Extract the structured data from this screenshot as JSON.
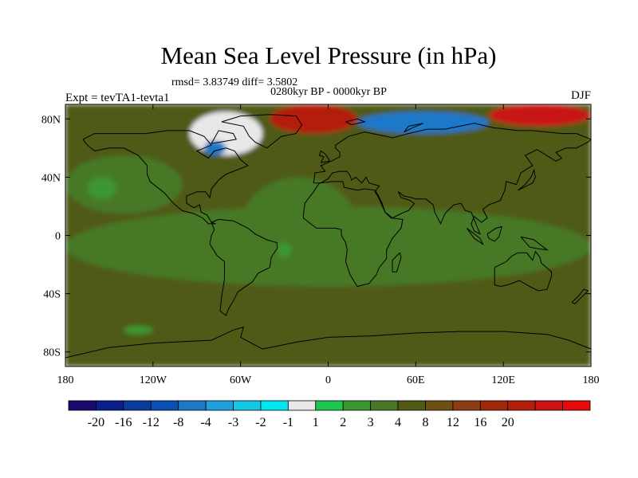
{
  "chart_data": {
    "type": "heatmap",
    "title": "Mean Sea Level Pressure (in hPa)",
    "stats": "rmsd= 3.83749 diff= 3.5802",
    "period": "0280kyr BP - 0000kyr BP",
    "experiment": "Expt = tevTA1-tevta1",
    "season": "DJF",
    "projection": "cylindrical equidistant, lon -180..180, lat -90..90",
    "x_range": [
      -180,
      180
    ],
    "y_range": [
      -90,
      90
    ],
    "x_ticks": [
      {
        "value": -180,
        "label": "180"
      },
      {
        "value": -120,
        "label": "120W"
      },
      {
        "value": -60,
        "label": "60W"
      },
      {
        "value": 0,
        "label": "0"
      },
      {
        "value": 60,
        "label": "60E"
      },
      {
        "value": 120,
        "label": "120E"
      },
      {
        "value": 180,
        "label": "180"
      }
    ],
    "y_ticks": [
      {
        "value": 80,
        "label": "80N"
      },
      {
        "value": 40,
        "label": "40N"
      },
      {
        "value": 0,
        "label": "0"
      },
      {
        "value": -40,
        "label": "40S"
      },
      {
        "value": -80,
        "label": "80S"
      }
    ],
    "colorbar": {
      "colors": [
        "#1a0a6e",
        "#0a1e8c",
        "#0a3ca0",
        "#0a50b4",
        "#1e78c8",
        "#1ea0dc",
        "#14c8e6",
        "#00e6f0",
        "#e8e8e8",
        "#1ec850",
        "#3c9632",
        "#467828",
        "#505a14",
        "#6e5014",
        "#8c3c14",
        "#a0280a",
        "#b41e0a",
        "#c81414",
        "#e60a0a"
      ],
      "labels": [
        "-20",
        "-16",
        "-12",
        "-8",
        "-4",
        "-3",
        "-2",
        "-1",
        "1",
        "2",
        "3",
        "4",
        "8",
        "12",
        "16",
        "20"
      ],
      "label_boundaries": [
        1,
        2,
        3,
        4,
        5,
        6,
        7,
        8,
        9,
        10,
        11,
        12,
        13,
        14,
        15,
        16
      ]
    },
    "regions": [
      {
        "name": "background-field",
        "value_class": "4 to 8",
        "color": "#505a14",
        "lon": [
          -180,
          180
        ],
        "lat": [
          -90,
          90
        ]
      },
      {
        "name": "pacific-north-low",
        "value_class": "3 to 4",
        "color": "#467828",
        "lon": [
          -180,
          -100
        ],
        "lat": [
          15,
          55
        ]
      },
      {
        "name": "tropical-low-band",
        "value_class": "3 to 4",
        "color": "#467828",
        "lon": [
          -180,
          180
        ],
        "lat": [
          -35,
          20
        ]
      },
      {
        "name": "atlantic-low",
        "value_class": "3 to 4",
        "color": "#467828",
        "lon": [
          -60,
          20
        ],
        "lat": [
          -30,
          40
        ]
      },
      {
        "name": "pacific-green-spot",
        "value_class": "2 to 3",
        "color": "#3c9632",
        "lon": [
          -165,
          -145
        ],
        "lat": [
          25,
          40
        ]
      },
      {
        "name": "atlantic-green-spot",
        "value_class": "2 to 3",
        "color": "#3c9632",
        "lon": [
          -35,
          -25
        ],
        "lat": [
          -15,
          -5
        ]
      },
      {
        "name": "greenland-ice",
        "value_class": "-1 to 1",
        "color": "#e8e8e8",
        "lon": [
          -95,
          -45
        ],
        "lat": [
          55,
          85
        ]
      },
      {
        "name": "hudson-ice",
        "value_class": "-4 to -1",
        "color": "#1e78c8",
        "lon": [
          -85,
          -70
        ],
        "lat": [
          55,
          65
        ]
      },
      {
        "name": "scandinavian-ice",
        "value_class": "-8 to -1",
        "color": "#1e78c8",
        "lon": [
          20,
          110
        ],
        "lat": [
          70,
          85
        ]
      },
      {
        "name": "arctic-high",
        "value_class": "12 to 20",
        "color": "#b41e0a",
        "lon": [
          -40,
          20
        ],
        "lat": [
          70,
          90
        ]
      },
      {
        "name": "siberian-high",
        "value_class": "12 to 20",
        "color": "#c81414",
        "lon": [
          110,
          180
        ],
        "lat": [
          75,
          90
        ]
      },
      {
        "name": "southern-ocean-low",
        "value_class": "2 to 3",
        "color": "#3c9632",
        "lon": [
          -140,
          -120
        ],
        "lat": [
          -68,
          -62
        ]
      }
    ]
  }
}
